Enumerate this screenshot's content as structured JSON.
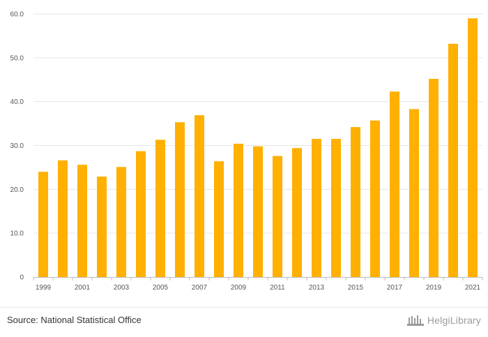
{
  "chart_data": {
    "type": "bar",
    "title": "",
    "xlabel": "",
    "ylabel": "",
    "ylim": [
      0,
      60
    ],
    "grid": true,
    "bar_color": "#FFB000",
    "categories": [
      "1999",
      "2000",
      "2001",
      "2002",
      "2003",
      "2004",
      "2005",
      "2006",
      "2007",
      "2008",
      "2009",
      "2010",
      "2011",
      "2012",
      "2013",
      "2014",
      "2015",
      "2016",
      "2017",
      "2018",
      "2019",
      "2020",
      "2021"
    ],
    "values": [
      24.0,
      26.6,
      25.6,
      22.9,
      25.1,
      28.7,
      31.3,
      35.3,
      36.9,
      26.4,
      30.4,
      29.8,
      27.6,
      29.4,
      31.5,
      31.5,
      34.2,
      35.7,
      42.3,
      38.3,
      45.2,
      53.2,
      59.0
    ],
    "y_ticks": [
      "0",
      "10.0",
      "20.0",
      "30.0",
      "40.0",
      "50.0",
      "60.0"
    ],
    "y_tick_values": [
      0,
      10,
      20,
      30,
      40,
      50,
      60
    ],
    "x_tick_labels": [
      "1999",
      "2001",
      "2003",
      "2005",
      "2007",
      "2009",
      "2011",
      "2013",
      "2015",
      "2017",
      "2019",
      "2021"
    ]
  },
  "footer": {
    "source": "Source: National Statistical Office",
    "brand": "HelgiLibrary"
  },
  "colors": {
    "bar": "#FFB000",
    "grid": "#e6e6e6",
    "axis": "#bbbbbb",
    "brand": "#9a9a9a"
  }
}
